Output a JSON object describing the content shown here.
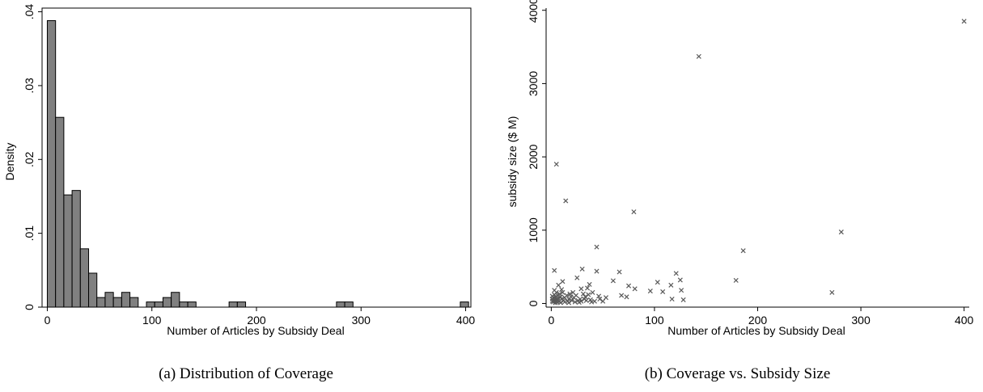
{
  "chart_data": [
    {
      "type": "bar",
      "subtype": "histogram",
      "caption": "(a) Distribution of Coverage",
      "xlabel": "Number of Articles by Subsidy Deal",
      "ylabel": "Density",
      "xlim": [
        -5,
        405
      ],
      "ylim": [
        0,
        0.0405
      ],
      "x_ticks": [
        0,
        100,
        200,
        300,
        400
      ],
      "y_ticks": [
        0,
        0.01,
        0.02,
        0.03,
        0.04
      ],
      "y_tick_labels": [
        "0",
        ".01",
        ".02",
        ".03",
        ".04"
      ],
      "bin_width": 7.9,
      "bins": [
        {
          "x": 0,
          "value": 0.0388
        },
        {
          "x": 7.9,
          "value": 0.0257
        },
        {
          "x": 15.8,
          "value": 0.0152
        },
        {
          "x": 23.7,
          "value": 0.0158
        },
        {
          "x": 31.6,
          "value": 0.0079
        },
        {
          "x": 39.5,
          "value": 0.0046
        },
        {
          "x": 47.4,
          "value": 0.0013
        },
        {
          "x": 55.3,
          "value": 0.002
        },
        {
          "x": 63.2,
          "value": 0.0013
        },
        {
          "x": 71.1,
          "value": 0.002
        },
        {
          "x": 79.0,
          "value": 0.0013
        },
        {
          "x": 94.8,
          "value": 0.0007
        },
        {
          "x": 102.7,
          "value": 0.0007
        },
        {
          "x": 110.6,
          "value": 0.0013
        },
        {
          "x": 118.5,
          "value": 0.002
        },
        {
          "x": 126.4,
          "value": 0.0007
        },
        {
          "x": 134.3,
          "value": 0.0007
        },
        {
          "x": 173.8,
          "value": 0.0007
        },
        {
          "x": 181.7,
          "value": 0.0007
        },
        {
          "x": 276.5,
          "value": 0.0007
        },
        {
          "x": 284.4,
          "value": 0.0007
        },
        {
          "x": 394.9,
          "value": 0.0007
        }
      ],
      "colors": {
        "bar_fill": "#808080",
        "bar_stroke": "#000000"
      }
    },
    {
      "type": "scatter",
      "caption": "(b) Coverage vs. Subsidy Size",
      "xlabel": "Number of Articles by Subsidy Deal",
      "ylabel": "subsidy size ($ M)",
      "xlim": [
        -5,
        405
      ],
      "ylim": [
        -50,
        4030
      ],
      "x_ticks": [
        0,
        100,
        200,
        300,
        400
      ],
      "y_ticks": [
        0,
        1000,
        2000,
        3000,
        4000
      ],
      "marker": "x",
      "colors": {
        "marker": "#595959"
      },
      "points": [
        [
          400,
          3850
        ],
        [
          143,
          3370
        ],
        [
          5,
          1900
        ],
        [
          14,
          1400
        ],
        [
          80,
          1250
        ],
        [
          281,
          975
        ],
        [
          186,
          720
        ],
        [
          44,
          770
        ],
        [
          179,
          315
        ],
        [
          272,
          150
        ],
        [
          3,
          450
        ],
        [
          30,
          470
        ],
        [
          44,
          440
        ],
        [
          66,
          430
        ],
        [
          121,
          410
        ],
        [
          25,
          350
        ],
        [
          11,
          300
        ],
        [
          7,
          250
        ],
        [
          37,
          260
        ],
        [
          60,
          310
        ],
        [
          75,
          240
        ],
        [
          81,
          200
        ],
        [
          103,
          290
        ],
        [
          108,
          160
        ],
        [
          116,
          250
        ],
        [
          125,
          320
        ],
        [
          126,
          180
        ],
        [
          96,
          170
        ],
        [
          117,
          60
        ],
        [
          128,
          50
        ],
        [
          68,
          110
        ],
        [
          73,
          90
        ],
        [
          53,
          80
        ],
        [
          50,
          30
        ],
        [
          46,
          100
        ],
        [
          47,
          60
        ],
        [
          40,
          150
        ],
        [
          36,
          120
        ],
        [
          33,
          90
        ],
        [
          31,
          130
        ],
        [
          28,
          60
        ],
        [
          26,
          40
        ],
        [
          24,
          110
        ],
        [
          22,
          80
        ],
        [
          21,
          150
        ],
        [
          20,
          40
        ],
        [
          19,
          90
        ],
        [
          18,
          130
        ],
        [
          17,
          60
        ],
        [
          16,
          30
        ],
        [
          15,
          110
        ],
        [
          13,
          80
        ],
        [
          12,
          40
        ],
        [
          11,
          150
        ],
        [
          10,
          60
        ],
        [
          10,
          190
        ],
        [
          9,
          90
        ],
        [
          8,
          30
        ],
        [
          8,
          130
        ],
        [
          7,
          70
        ],
        [
          6,
          40
        ],
        [
          6,
          110
        ],
        [
          5,
          150
        ],
        [
          5,
          60
        ],
        [
          4,
          90
        ],
        [
          4,
          30
        ],
        [
          3,
          180
        ],
        [
          3,
          120
        ],
        [
          3,
          50
        ],
        [
          2,
          80
        ],
        [
          2,
          40
        ],
        [
          2,
          20
        ],
        [
          1,
          100
        ],
        [
          1,
          60
        ],
        [
          1,
          30
        ],
        [
          4,
          10
        ],
        [
          6,
          15
        ],
        [
          9,
          10
        ],
        [
          13,
          20
        ],
        [
          17,
          10
        ],
        [
          23,
          20
        ],
        [
          27,
          15
        ],
        [
          29,
          200
        ],
        [
          34,
          40
        ],
        [
          38,
          50
        ],
        [
          42,
          30
        ],
        [
          35,
          210
        ],
        [
          39,
          20
        ],
        [
          32,
          60
        ],
        [
          29,
          30
        ]
      ]
    }
  ]
}
